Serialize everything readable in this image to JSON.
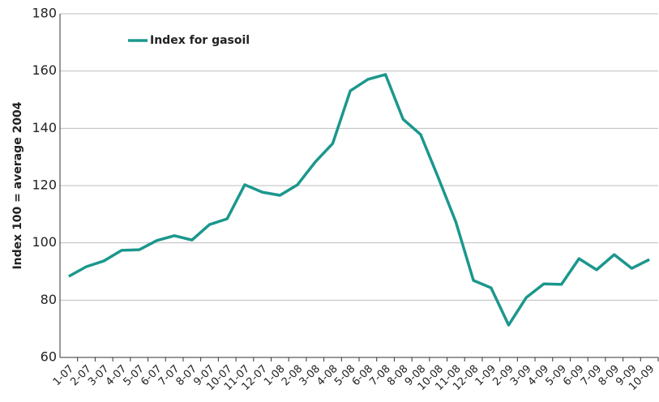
{
  "chart_data": {
    "type": "line",
    "y_label": "Index 100 = average 2004",
    "categories": [
      "1-07",
      "2-07",
      "3-07",
      "4-07",
      "5-07",
      "6-07",
      "7-07",
      "8-07",
      "9-07",
      "10-07",
      "11-07",
      "12-07",
      "1-08",
      "2-08",
      "3-08",
      "4-08",
      "5-08",
      "6-08",
      "7-08",
      "8-08",
      "9-08",
      "10-08",
      "11-08",
      "12-08",
      "1-09",
      "2-09",
      "3-09",
      "4-09",
      "5-09",
      "6-09",
      "7-09",
      "8-09",
      "9-09",
      "10-09"
    ],
    "series": [
      {
        "name": "Index for gasoil",
        "color": "#1b978d",
        "values": [
          88.3,
          91.7,
          93.7,
          97.4,
          97.6,
          100.8,
          102.5,
          101,
          106.4,
          108.4,
          120.3,
          117.7,
          116.6,
          120.3,
          128.2,
          134.7,
          153.1,
          157.1,
          158.8,
          143.2,
          137.8,
          122.8,
          107.3,
          86.9,
          84.3,
          71.3,
          80.9,
          85.7,
          85.5,
          94.5,
          90.6,
          95.9,
          91.1,
          94.2
        ]
      }
    ],
    "ylim": [
      60,
      180
    ],
    "yticks": [
      60,
      80,
      100,
      120,
      140,
      160,
      180
    ],
    "grid": true,
    "legend": "top-left"
  }
}
